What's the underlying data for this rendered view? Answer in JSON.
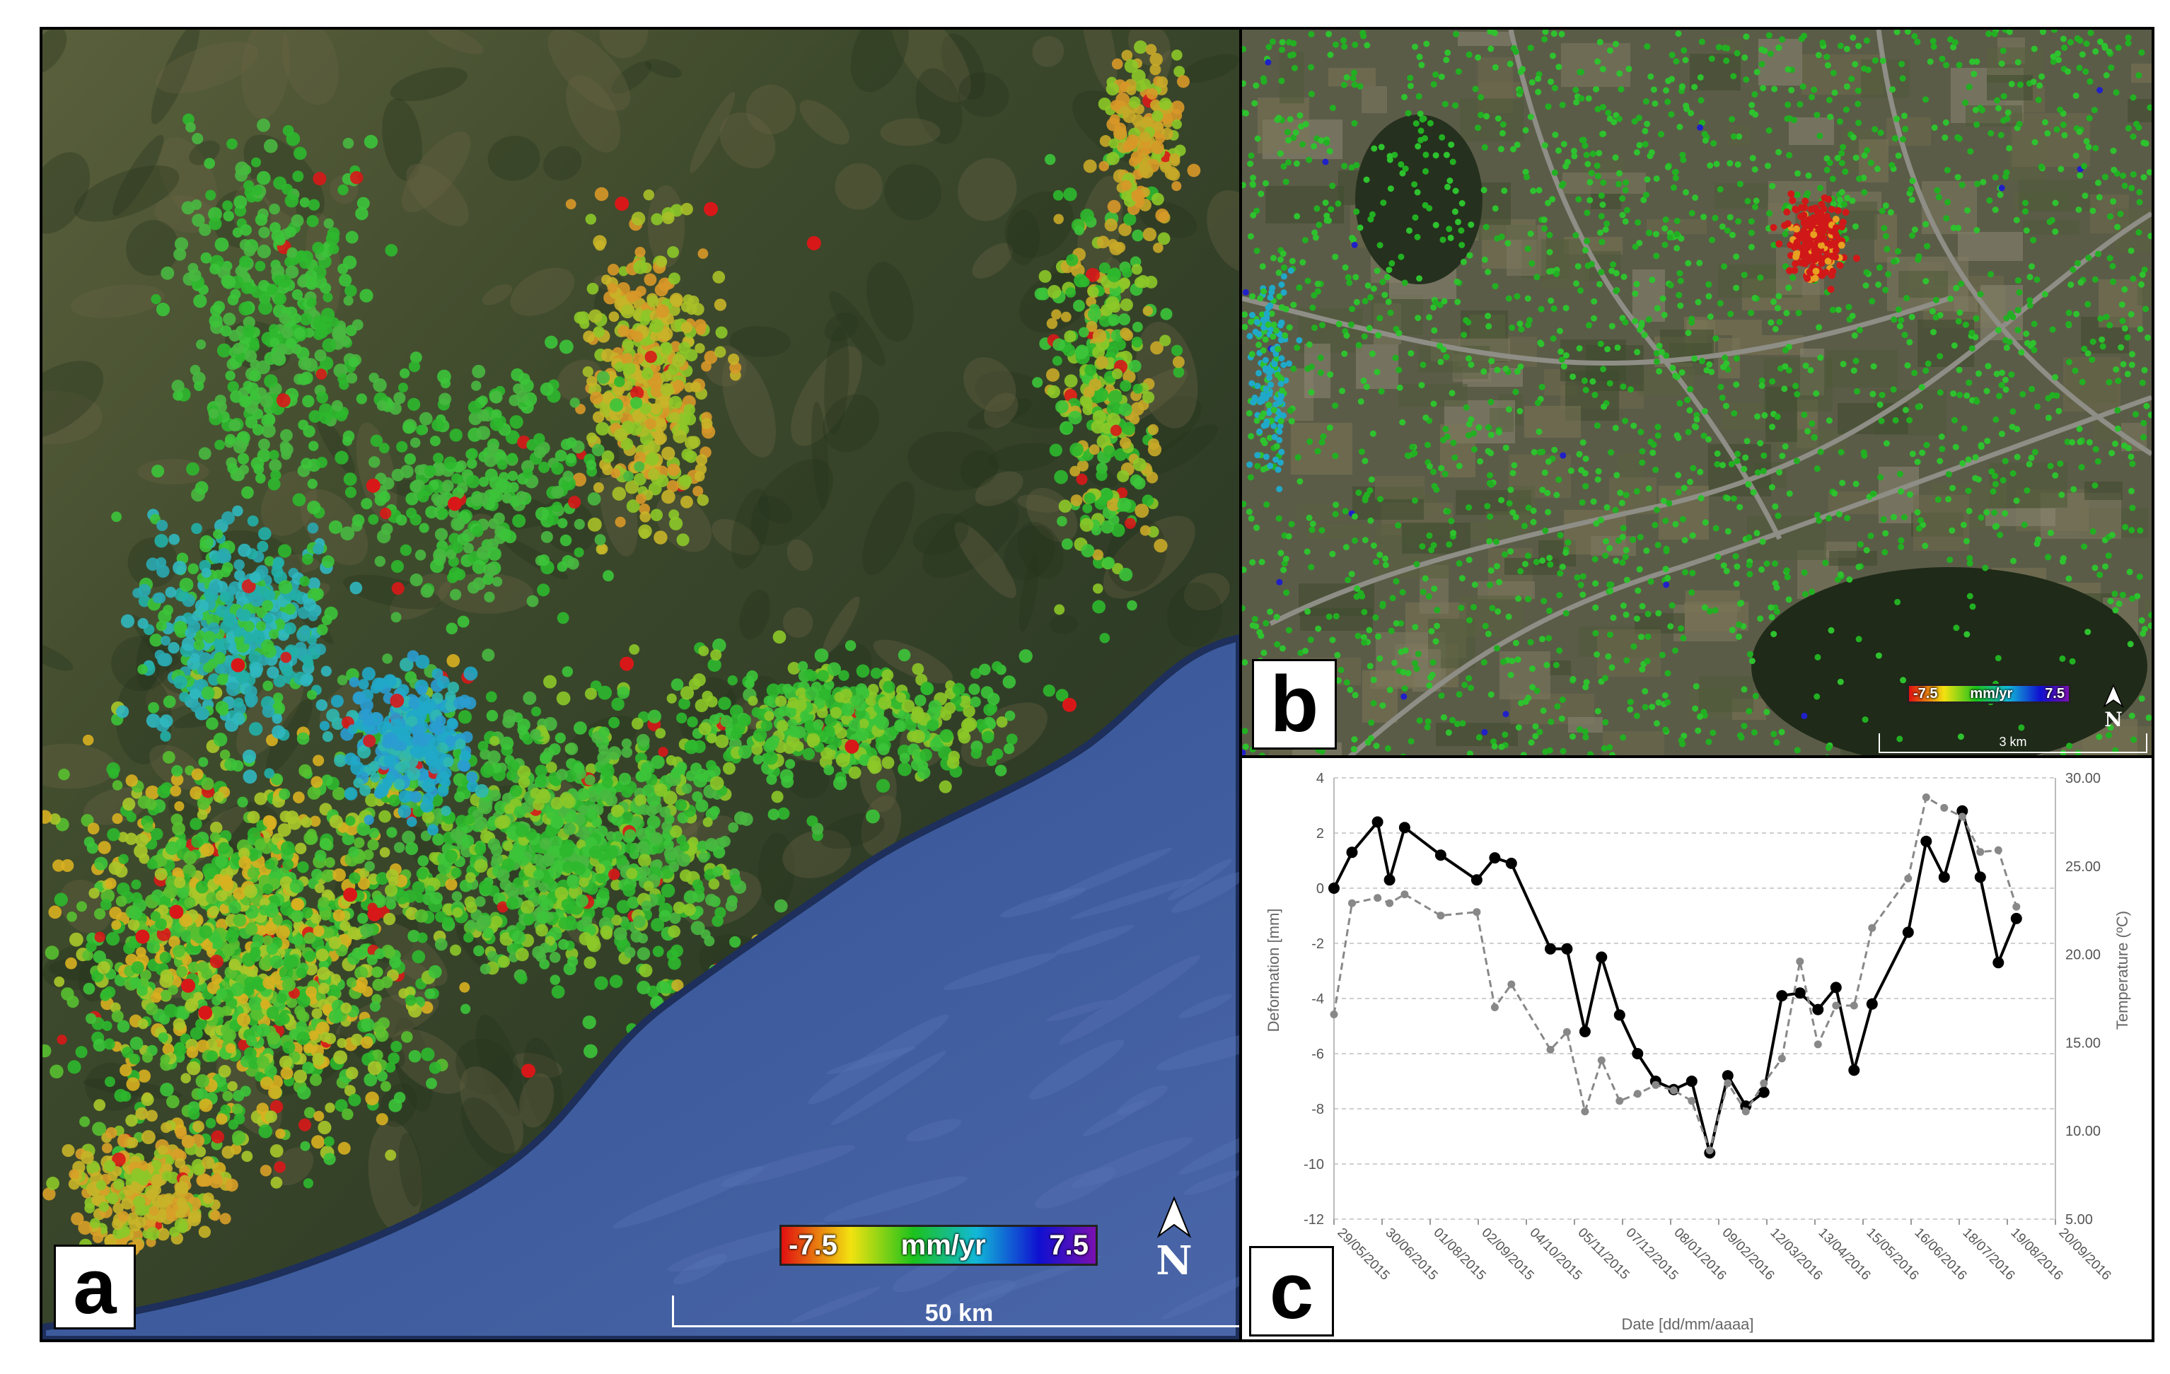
{
  "panels": {
    "a": {
      "label": "a",
      "legend": {
        "min_label": "-7.5",
        "unit": "mm/yr",
        "max_label": "7.5"
      },
      "scale_bar": "50 km",
      "north_label": "N"
    },
    "b": {
      "label": "b",
      "legend": {
        "min_label": "-7.5",
        "unit": "mm/yr",
        "max_label": "7.5"
      },
      "scale_bar": "3 km",
      "north_label": "N"
    },
    "c": {
      "label": "c"
    }
  },
  "colors": {
    "sea": "#3c5a99",
    "land": "#3f4a2a",
    "ramp": [
      "#e01010",
      "#f2e210",
      "#1cc21c",
      "#12b8d8",
      "#1010d0",
      "#7a10b0"
    ]
  },
  "chart_data": {
    "type": "line",
    "xlabel": "Date [dd/mm/aaaa]",
    "ylabel": "Deformation [mm]",
    "y2label": "Temperature (ºC)",
    "ylim": [
      -12,
      4
    ],
    "y_ticks": [
      4,
      2,
      0,
      -2,
      -4,
      -6,
      -8,
      -10,
      -12
    ],
    "y2lim": [
      5,
      30
    ],
    "y2_ticks": [
      "30.00",
      "25.00",
      "20.00",
      "15.00",
      "10.00",
      "5.00"
    ],
    "x_start": "2015-05-29",
    "x_end": "2016-09-20",
    "x_ticks": [
      "29/05/2015",
      "30/06/2015",
      "01/08/2015",
      "02/09/2015",
      "04/10/2015",
      "05/11/2015",
      "07/12/2015",
      "08/01/2016",
      "09/02/2016",
      "12/03/2016",
      "13/04/2016",
      "15/05/2016",
      "16/06/2016",
      "18/07/2016",
      "19/08/2016",
      "20/09/2016"
    ],
    "x_tick_dates": [
      "2015-05-29",
      "2015-06-30",
      "2015-08-01",
      "2015-09-02",
      "2015-10-04",
      "2015-11-05",
      "2015-12-07",
      "2016-01-08",
      "2016-02-09",
      "2016-03-12",
      "2016-04-13",
      "2016-05-15",
      "2016-06-16",
      "2016-07-18",
      "2016-08-19",
      "2016-09-20"
    ],
    "series": [
      {
        "name": "Deformation",
        "axis": "left",
        "style": "solid",
        "color": "#000000",
        "points": [
          [
            "2015-05-29",
            0.0
          ],
          [
            "2015-06-10",
            1.3
          ],
          [
            "2015-06-27",
            2.4
          ],
          [
            "2015-07-05",
            0.3
          ],
          [
            "2015-07-15",
            2.2
          ],
          [
            "2015-08-08",
            1.2
          ],
          [
            "2015-09-01",
            0.3
          ],
          [
            "2015-09-13",
            1.1
          ],
          [
            "2015-09-24",
            0.9
          ],
          [
            "2015-10-20",
            -2.2
          ],
          [
            "2015-10-31",
            -2.2
          ],
          [
            "2015-11-12",
            -5.2
          ],
          [
            "2015-11-23",
            -2.5
          ],
          [
            "2015-12-05",
            -4.6
          ],
          [
            "2015-12-17",
            -6.0
          ],
          [
            "2015-12-29",
            -7.0
          ],
          [
            "2016-01-10",
            -7.3
          ],
          [
            "2016-01-22",
            -7.0
          ],
          [
            "2016-02-03",
            -9.6
          ],
          [
            "2016-02-15",
            -6.8
          ],
          [
            "2016-02-27",
            -7.9
          ],
          [
            "2016-03-10",
            -7.4
          ],
          [
            "2016-03-22",
            -3.9
          ],
          [
            "2016-04-03",
            -3.8
          ],
          [
            "2016-04-15",
            -4.4
          ],
          [
            "2016-04-27",
            -3.6
          ],
          [
            "2016-05-09",
            -6.6
          ],
          [
            "2016-05-21",
            -4.2
          ],
          [
            "2016-06-14",
            -1.6
          ],
          [
            "2016-06-26",
            1.7
          ],
          [
            "2016-07-08",
            0.4
          ],
          [
            "2016-07-20",
            2.8
          ],
          [
            "2016-08-01",
            0.4
          ],
          [
            "2016-08-13",
            -2.7
          ],
          [
            "2016-08-25",
            -1.1
          ]
        ]
      },
      {
        "name": "Temperature",
        "axis": "right",
        "style": "dashed",
        "color": "#888888",
        "points": [
          [
            "2015-05-29",
            16.6
          ],
          [
            "2015-06-10",
            22.9
          ],
          [
            "2015-06-27",
            23.2
          ],
          [
            "2015-07-05",
            22.9
          ],
          [
            "2015-07-15",
            23.4
          ],
          [
            "2015-08-08",
            22.2
          ],
          [
            "2015-09-01",
            22.4
          ],
          [
            "2015-09-13",
            17.0
          ],
          [
            "2015-09-24",
            18.3
          ],
          [
            "2015-10-20",
            14.6
          ],
          [
            "2015-10-31",
            15.6
          ],
          [
            "2015-11-12",
            11.1
          ],
          [
            "2015-11-23",
            14.0
          ],
          [
            "2015-12-05",
            11.7
          ],
          [
            "2015-12-17",
            12.1
          ],
          [
            "2015-12-29",
            12.6
          ],
          [
            "2016-01-10",
            12.3
          ],
          [
            "2016-01-22",
            11.7
          ],
          [
            "2016-02-03",
            8.9
          ],
          [
            "2016-02-15",
            12.7
          ],
          [
            "2016-02-27",
            11.1
          ],
          [
            "2016-03-10",
            12.7
          ],
          [
            "2016-03-22",
            14.1
          ],
          [
            "2016-04-03",
            19.6
          ],
          [
            "2016-04-15",
            14.9
          ],
          [
            "2016-04-27",
            17.1
          ],
          [
            "2016-05-09",
            17.1
          ],
          [
            "2016-05-21",
            21.5
          ],
          [
            "2016-06-14",
            24.3
          ],
          [
            "2016-06-26",
            28.9
          ],
          [
            "2016-07-08",
            28.3
          ],
          [
            "2016-07-20",
            27.8
          ],
          [
            "2016-08-01",
            25.8
          ],
          [
            "2016-08-13",
            25.9
          ],
          [
            "2016-08-25",
            22.7
          ]
        ]
      }
    ]
  }
}
